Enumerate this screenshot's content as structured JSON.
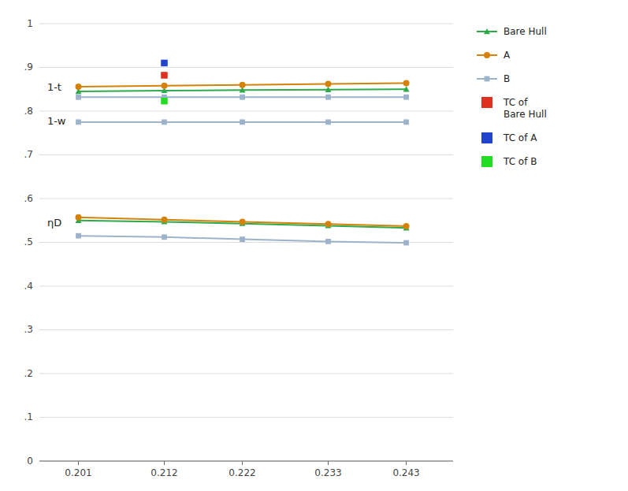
{
  "chart_data": {
    "type": "line",
    "x": [
      0.201,
      0.212,
      0.222,
      0.233,
      0.243
    ],
    "series": [
      {
        "name": "Bare Hull",
        "color": "#2eaa4a",
        "marker": "triangle",
        "values": [
          0.845,
          0.847,
          0.848,
          0.849,
          0.85
        ]
      },
      {
        "name": "A",
        "color": "#d4820a",
        "marker": "circle",
        "values": [
          0.856,
          0.858,
          0.86,
          0.862,
          0.864
        ]
      },
      {
        "name": "B",
        "color": "#9db3cc",
        "marker": "square",
        "values": [
          0.832,
          0.832,
          0.832,
          0.832,
          0.832
        ]
      },
      {
        "name": "B",
        "color": "#9db3cc",
        "marker": "square",
        "values": [
          0.775,
          0.775,
          0.775,
          0.775,
          0.775
        ]
      },
      {
        "name": "Bare Hull",
        "color": "#2eaa4a",
        "marker": "triangle",
        "values": [
          0.55,
          0.547,
          0.543,
          0.538,
          0.533
        ]
      },
      {
        "name": "A",
        "color": "#d4820a",
        "marker": "circle",
        "values": [
          0.557,
          0.552,
          0.547,
          0.542,
          0.537
        ]
      },
      {
        "name": "B",
        "color": "#9db3cc",
        "marker": "square",
        "values": [
          0.515,
          0.512,
          0.507,
          0.502,
          0.499
        ]
      },
      {
        "name": "TC of\nBare Hull",
        "type": "scatter",
        "color": "#e03020",
        "marker": "square",
        "x": [
          0.212
        ],
        "values": [
          0.882
        ]
      },
      {
        "name": "TC of A",
        "type": "scatter",
        "color": "#2244cc",
        "marker": "square",
        "x": [
          0.212
        ],
        "values": [
          0.91
        ]
      },
      {
        "name": "TC of B",
        "type": "scatter",
        "color": "#22dd22",
        "marker": "square",
        "x": [
          0.212
        ],
        "values": [
          0.823
        ]
      }
    ],
    "annotations": [
      {
        "text": "1-t",
        "x": 0.197,
        "y": 0.853
      },
      {
        "text": "1-w",
        "x": 0.197,
        "y": 0.775
      },
      {
        "text": "ηD",
        "x": 0.197,
        "y": 0.543
      }
    ],
    "xlim": [
      0.196,
      0.249
    ],
    "ylim": [
      0,
      1.0
    ],
    "xticks": [
      0.201,
      0.212,
      0.222,
      0.233,
      0.243
    ],
    "yticks": [
      0,
      {
        "value": 0.1,
        "label": ".1"
      },
      {
        "value": 0.2,
        "label": ".2"
      },
      {
        "value": 0.3,
        "label": ".3"
      },
      {
        "value": 0.4,
        "label": ".4"
      },
      {
        "value": 0.5,
        "label": ".5"
      },
      {
        "value": 0.6,
        "label": ".6"
      },
      {
        "value": 0.7,
        "label": ".7"
      },
      {
        "value": 0.8,
        "label": ".8"
      },
      {
        "value": 0.9,
        "label": ".9"
      },
      1
    ],
    "grid": true,
    "legend": "right"
  }
}
